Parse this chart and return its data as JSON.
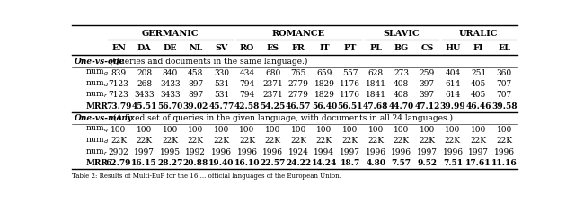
{
  "group_info": [
    [
      "GERMANIC",
      1,
      5
    ],
    [
      "ROMANCE",
      6,
      10
    ],
    [
      "SLAVIC",
      11,
      13
    ],
    [
      "URALIC",
      14,
      16
    ]
  ],
  "langs": [
    "EN",
    "DA",
    "DE",
    "NL",
    "SV",
    "RO",
    "ES",
    "FR",
    "IT",
    "PT",
    "PL",
    "BG",
    "CS",
    "HU",
    "FI",
    "EL"
  ],
  "section1_title": "One-vs-one",
  "section1_subtitle": " (Queries and documents in the same language.)",
  "section1_rows": {
    "num_q": [
      "839",
      "208",
      "840",
      "458",
      "330",
      "434",
      "680",
      "765",
      "659",
      "557",
      "628",
      "273",
      "259",
      "404",
      "251",
      "360"
    ],
    "num_d": [
      "7123",
      "268",
      "3433",
      "897",
      "531",
      "794",
      "2371",
      "2779",
      "1829",
      "1176",
      "1841",
      "408",
      "397",
      "614",
      "405",
      "707"
    ],
    "num_r": [
      "7123",
      "3433",
      "3433",
      "897",
      "531",
      "794",
      "2371",
      "2779",
      "1829",
      "1176",
      "1841",
      "408",
      "397",
      "614",
      "405",
      "707"
    ],
    "MRR": [
      "73.79",
      "45.51",
      "56.70",
      "39.02",
      "45.77",
      "42.58",
      "54.25",
      "46.57",
      "56.40",
      "56.51",
      "47.68",
      "44.70",
      "47.12",
      "39.99",
      "46.46",
      "39.58"
    ]
  },
  "section2_title": "One-vs-many",
  "section2_subtitle": " (A fixed set of queries in the given language, with documents in all 24 languages.)",
  "section2_rows": {
    "num_q": [
      "100",
      "100",
      "100",
      "100",
      "100",
      "100",
      "100",
      "100",
      "100",
      "100",
      "100",
      "100",
      "100",
      "100",
      "100",
      "100"
    ],
    "num_d": [
      "22K",
      "22K",
      "22K",
      "22K",
      "22K",
      "22K",
      "22K",
      "22K",
      "22K",
      "22K",
      "22K",
      "22K",
      "22K",
      "22K",
      "22K",
      "22K"
    ],
    "num_r": [
      "2902",
      "1997",
      "1995",
      "1992",
      "1996",
      "1996",
      "1996",
      "1924",
      "1994",
      "1997",
      "1996",
      "1996",
      "1997",
      "1996",
      "1997",
      "1996"
    ],
    "MRR": [
      "62.79",
      "16.15",
      "28.27",
      "20.88",
      "19.40",
      "16.10",
      "22.57",
      "24.22",
      "14.24",
      "18.7",
      "4.80",
      "7.57",
      "9.52",
      "7.51",
      "17.61",
      "11.16"
    ]
  },
  "caption": "Table 2: Results of Multi-EuP for the 16 ... official languages ...",
  "bg_color": "#ffffff",
  "text_color": "#000000",
  "row_labels": [
    "num$_q$",
    "num$_d$",
    "num$_r$",
    "MRR"
  ],
  "row_keys": [
    "num_q",
    "num_d",
    "num_r",
    "MRR"
  ]
}
